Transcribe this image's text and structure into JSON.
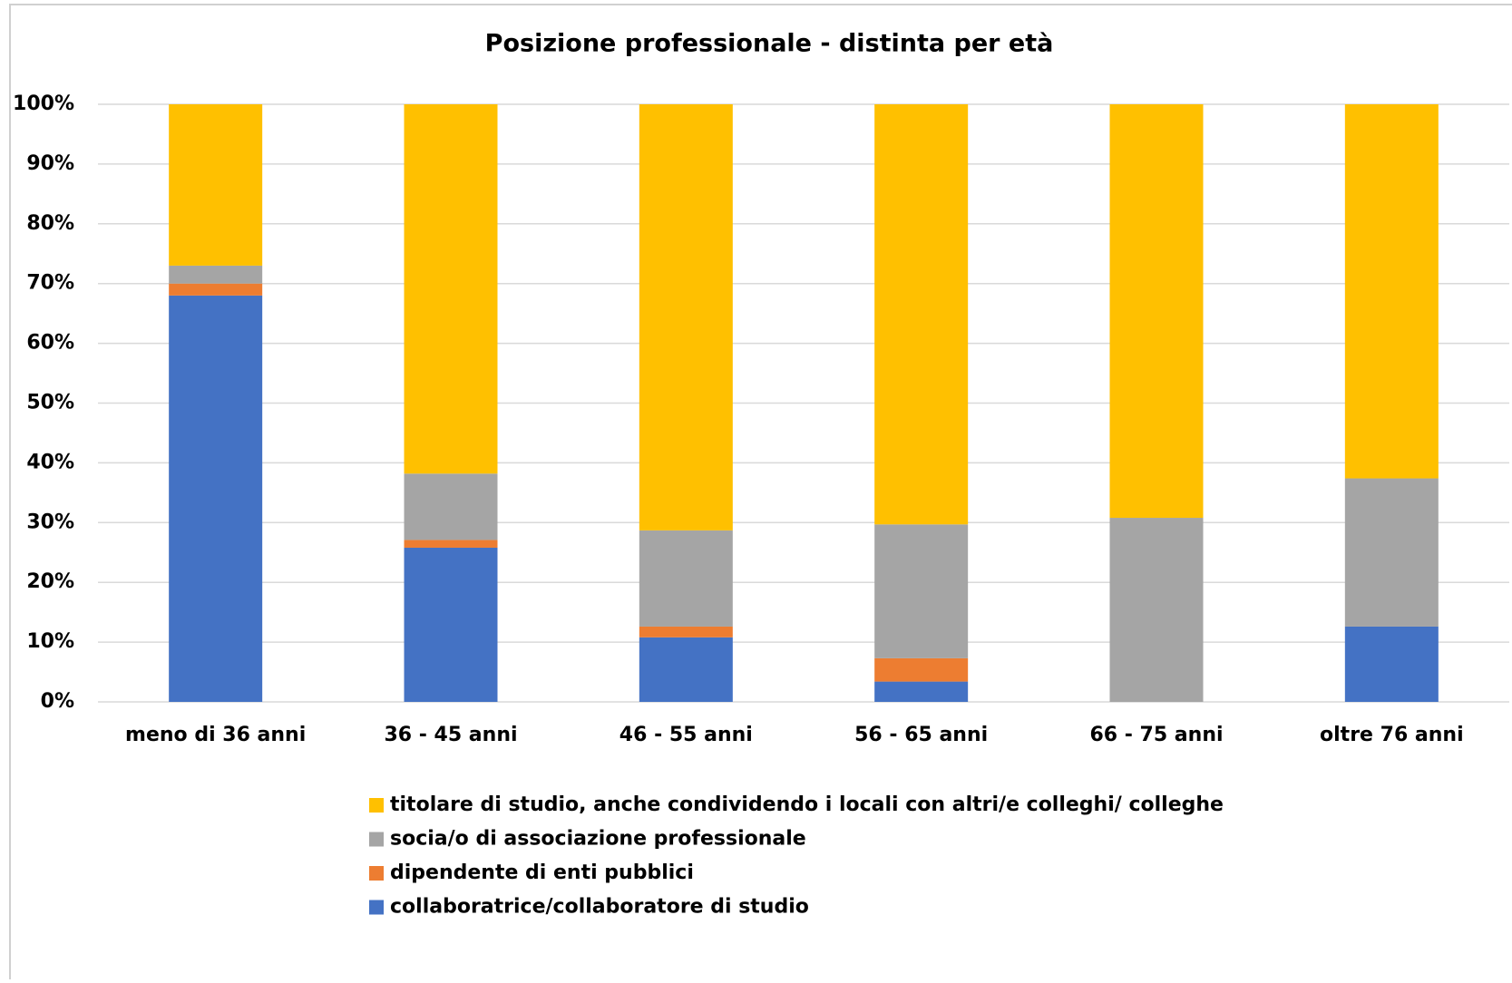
{
  "chart_data": {
    "type": "stacked_bar",
    "title": "Posizione professionale - distinta per età",
    "categories": [
      "meno di 36 anni",
      "36 - 45 anni",
      "46 - 55 anni",
      "56 - 65 anni",
      "66 - 75 anni",
      "oltre 76 anni"
    ],
    "series": [
      {
        "name": "collaboratrice/collaboratore di studio",
        "color": "#4472c4",
        "values": [
          68,
          25.8,
          10.8,
          3.4,
          0,
          12.6
        ]
      },
      {
        "name": "dipendente di enti pubblici",
        "color": "#ed7d31",
        "values": [
          2,
          1.3,
          1.8,
          3.9,
          0,
          0
        ]
      },
      {
        "name": "socia/o di associazione professionale",
        "color": "#a5a5a5",
        "values": [
          3,
          11.1,
          16.1,
          22.4,
          30.8,
          24.8
        ]
      },
      {
        "name": "titolare di studio, anche condividendo i locali con altri/e colleghi/ colleghe",
        "color": "#ffc000",
        "values": [
          27,
          61.8,
          71.3,
          70.3,
          69.2,
          62.6
        ]
      }
    ],
    "ylim": [
      0,
      100
    ],
    "yticks": [
      {
        "value": 0,
        "label": "0%"
      },
      {
        "value": 10,
        "label": "10%"
      },
      {
        "value": 20,
        "label": "20%"
      },
      {
        "value": 30,
        "label": "30%"
      },
      {
        "value": 40,
        "label": "40%"
      },
      {
        "value": 50,
        "label": "50%"
      },
      {
        "value": 60,
        "label": "60%"
      },
      {
        "value": 70,
        "label": "70%"
      },
      {
        "value": 80,
        "label": "80%"
      },
      {
        "value": 90,
        "label": "90%"
      },
      {
        "value": 100,
        "label": "100%"
      }
    ],
    "grid": true,
    "legend": "bottom"
  }
}
